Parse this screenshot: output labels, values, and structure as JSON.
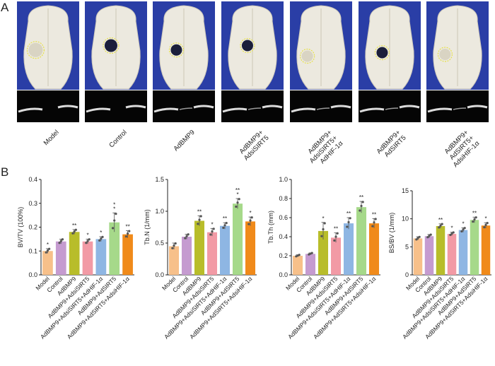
{
  "panel_a": {
    "letter": "A",
    "groups": [
      "Model",
      "Control",
      "AdBMP9",
      "AdBMP9+\nAdsiSIRT5",
      "AdBMP9+\nAdsiSIRT5+\nAdHIF-1α",
      "AdBMP9+\nAdSIRT5",
      "AdBMP9+\nAdSIRT5+\nAdsiHIF-1α"
    ],
    "colors": {
      "background": "#2a3ea6",
      "skull": "#ece9df",
      "ct_background": "#050505",
      "defect_outline": "#e6e04a"
    }
  },
  "panel_b": {
    "letter": "B"
  },
  "chart_data": [
    {
      "type": "bar",
      "ylabel": "BV/TV (100%)",
      "ylim": [
        0,
        0.4
      ],
      "yticks": [
        "0.0",
        "0.1",
        "0.2",
        "0.3",
        "0.4"
      ],
      "categories": [
        "Model",
        "Control",
        "AdBMP9",
        "AdBMP9+AdsiSIRT5",
        "AdBMP9+AdsiSIRT5+AdHIF-1α",
        "AdBMP9+AdSIRT5",
        "AdBMP9+AdSIRT5+AdsiHIF-1α"
      ],
      "values": [
        0.1,
        0.14,
        0.18,
        0.14,
        0.15,
        0.22,
        0.17
      ],
      "errors": [
        0.01,
        0.01,
        0.01,
        0.01,
        0.01,
        0.04,
        0.015
      ],
      "significance": [
        "*",
        "",
        "**",
        "*",
        "*",
        "*\n*",
        "**"
      ]
    },
    {
      "type": "bar",
      "ylabel": "Tb.N (1/mm)",
      "ylim": [
        0,
        1.5
      ],
      "yticks": [
        "0.0",
        "0.5",
        "1.0",
        "1.5"
      ],
      "categories": [
        "Model",
        "Control",
        "AdBMP9",
        "AdBMP9+AdsiSIRT5",
        "AdBMP9+AdsiSIRT5+AdHIF-1α",
        "AdBMP9+AdSIRT5",
        "AdBMP9+AdSIRT5+AdsiHIF-1α"
      ],
      "values": [
        0.45,
        0.6,
        0.85,
        0.67,
        0.77,
        1.12,
        0.84
      ],
      "errors": [
        0.05,
        0.04,
        0.08,
        0.06,
        0.05,
        0.08,
        0.07
      ],
      "significance": [
        "",
        "",
        "**",
        "*",
        "**",
        "**\n*",
        "*"
      ]
    },
    {
      "type": "bar",
      "ylabel": "Tb.Th (mm)",
      "ylim": [
        0,
        1.0
      ],
      "yticks": [
        "0.0",
        "0.2",
        "0.4",
        "0.6",
        "0.8",
        "1.0"
      ],
      "categories": [
        "Model",
        "Control",
        "AdBMP9",
        "AdBMP9+AdsiSIRT5",
        "AdBMP9+AdsiSIRT5+AdHIF-1α",
        "AdBMP9+AdSIRT5",
        "AdBMP9+AdSIRT5+AdsiHIF-1α"
      ],
      "values": [
        0.2,
        0.22,
        0.46,
        0.39,
        0.54,
        0.71,
        0.54
      ],
      "errors": [
        0.01,
        0.01,
        0.09,
        0.05,
        0.06,
        0.06,
        0.05
      ],
      "significance": [
        "",
        "",
        "*",
        "**",
        "**",
        "**",
        "**"
      ]
    },
    {
      "type": "bar",
      "ylabel": "BS/BV (1/mm)",
      "ylim": [
        0,
        15
      ],
      "yticks": [
        "0",
        "5",
        "10",
        "15"
      ],
      "categories": [
        "Model",
        "Control",
        "AdBMP9",
        "AdBMP9+AdsiSIRT5",
        "AdBMP9+AdsiSIRT5+AdHIF-1α",
        "AdBMP9+AdSIRT5",
        "AdBMP9+AdSIRT5+AdsiHIF-1α"
      ],
      "values": [
        6.5,
        6.9,
        8.7,
        7.3,
        8.0,
        9.8,
        8.8
      ],
      "errors": [
        0.3,
        0.3,
        0.4,
        0.3,
        0.4,
        0.5,
        0.5
      ],
      "significance": [
        "",
        "",
        "**",
        "*",
        "*",
        "**",
        "*"
      ]
    }
  ],
  "bar_colors": [
    "#f7c08a",
    "#c59bd0",
    "#b8bd2a",
    "#f29aa5",
    "#8eb6e3",
    "#a6d98a",
    "#f08a1a"
  ]
}
